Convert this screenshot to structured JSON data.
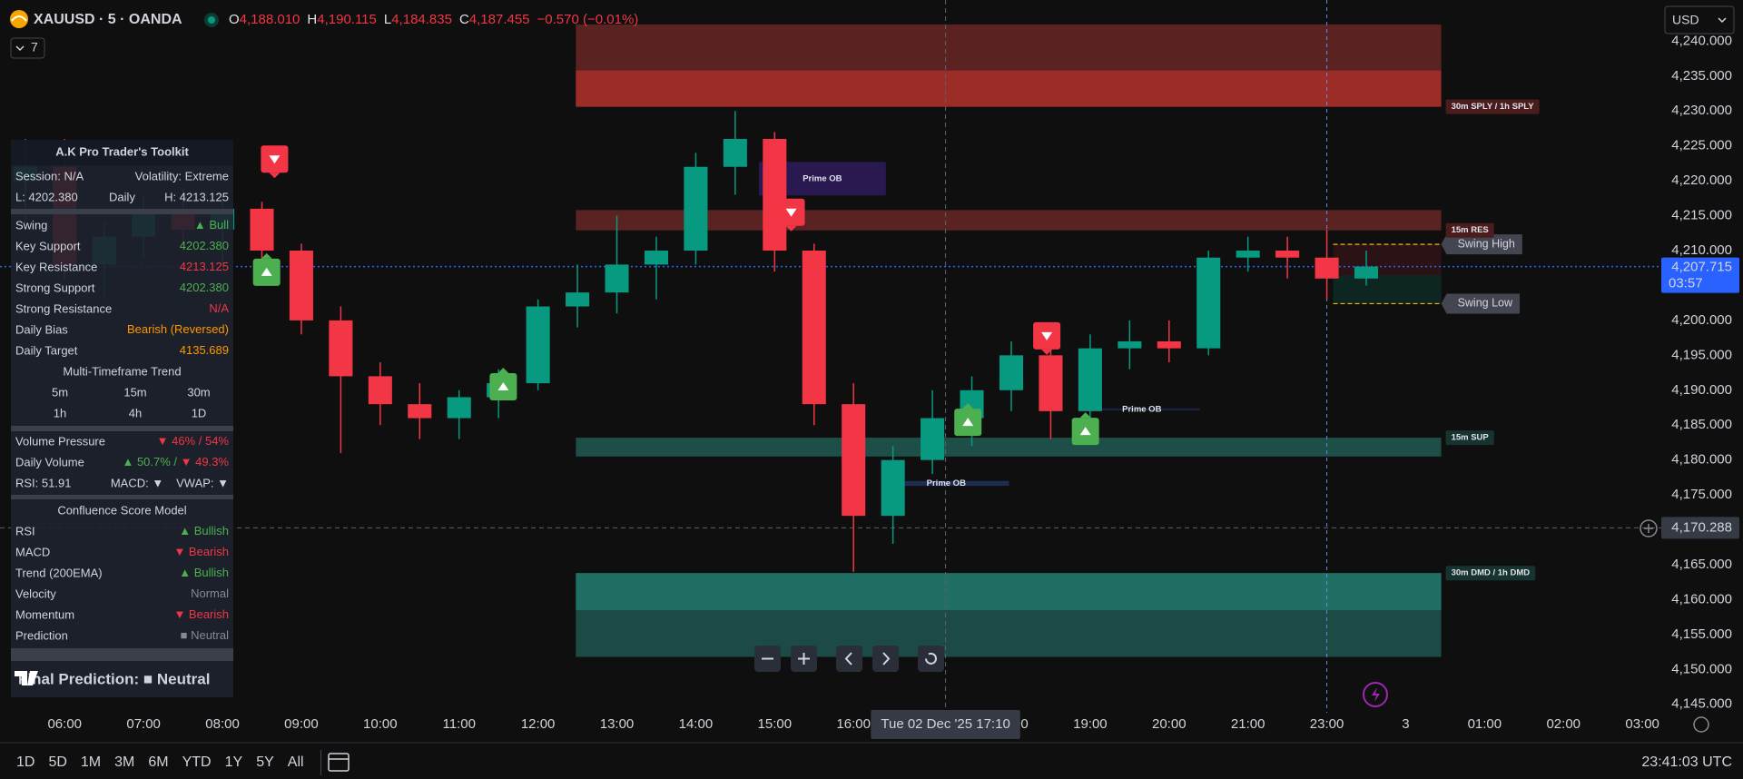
{
  "header": {
    "symbol": "XAUUSD · 5 · OANDA",
    "ohlc": [
      {
        "key": "O",
        "value": "4,188.010"
      },
      {
        "key": "H",
        "value": "4,190.115"
      },
      {
        "key": "L",
        "value": "4,184.835"
      },
      {
        "key": "C",
        "value": "4,187.455"
      }
    ],
    "change": "−0.570 (−0.01%)",
    "value_color": "#f23645",
    "indicators": "7",
    "currency": "USD"
  },
  "chart_data": {
    "type": "candlestick",
    "x": [
      5.5,
      6,
      6.5,
      7,
      7.5,
      8,
      8.5,
      9,
      9.5,
      10,
      10.5,
      11,
      11.5,
      12,
      12.5,
      13,
      13.5,
      14,
      14.5,
      15,
      15.5,
      16,
      16.5,
      17,
      17.5,
      18,
      18.5,
      19,
      19.5,
      20,
      20.5,
      21,
      21.5,
      23,
      23.5
    ],
    "open": [
      4220,
      4222,
      4208,
      4212,
      4216,
      4213,
      4216,
      4210,
      4200,
      4192,
      4188,
      4186,
      4189,
      4191,
      4202,
      4204,
      4208,
      4210,
      4222,
      4226,
      4210,
      4188,
      4172,
      4180,
      4186,
      4190,
      4195,
      4187,
      4196,
      4197,
      4196,
      4209,
      4210,
      4209,
      4206
    ],
    "high": [
      4226,
      4226,
      4214,
      4218,
      4219,
      4218,
      4217,
      4211,
      4202,
      4194,
      4191,
      4190,
      4193,
      4203,
      4208,
      4215,
      4212,
      4224,
      4230,
      4227,
      4211,
      4191,
      4182,
      4190,
      4192,
      4197,
      4198,
      4198,
      4200,
      4200,
      4210,
      4212,
      4212,
      4213,
      4210
    ],
    "low": [
      4214,
      4206,
      4203,
      4209,
      4210,
      4208,
      4208,
      4198,
      4181,
      4185,
      4183,
      4183,
      4186,
      4190,
      4199,
      4201,
      4203,
      4208,
      4218,
      4207,
      4185,
      4164,
      4168,
      4178,
      4182,
      4187,
      4183,
      4185,
      4193,
      4194,
      4195,
      4207,
      4206,
      4203,
      4205
    ],
    "close": [
      4222,
      4208,
      4212,
      4216,
      4213,
      4216,
      4210,
      4200,
      4192,
      4188,
      4186,
      4189,
      4191,
      4202,
      4204,
      4208,
      4210,
      4222,
      4226,
      4210,
      4188,
      4172,
      4180,
      4186,
      4190,
      4195,
      4187,
      4196,
      4197,
      4196,
      4209,
      4210,
      4209,
      4206,
      4207.715
    ],
    "up_color": "#089981",
    "down_color": "#f23645",
    "xlim": [
      5.18,
      27.24
    ],
    "breaks": [
      [
        22,
        23
      ]
    ],
    "xticks": [
      {
        "value": 6,
        "label": "06:00"
      },
      {
        "value": 7,
        "label": "07:00"
      },
      {
        "value": 8,
        "label": "08:00"
      },
      {
        "value": 9,
        "label": "09:00"
      },
      {
        "value": 10,
        "label": "10:00"
      },
      {
        "value": 11,
        "label": "11:00"
      },
      {
        "value": 12,
        "label": "12:00"
      },
      {
        "value": 13,
        "label": "13:00"
      },
      {
        "value": 14,
        "label": "14:00"
      },
      {
        "value": 15,
        "label": "15:00"
      },
      {
        "value": 16,
        "label": "16:00"
      },
      {
        "value": 18,
        "label": "18:00"
      },
      {
        "value": 19,
        "label": "19:00"
      },
      {
        "value": 20,
        "label": "20:00"
      },
      {
        "value": 21,
        "label": "21:00"
      },
      {
        "value": 23,
        "label": "23:00"
      },
      {
        "value": 24,
        "label": "3"
      },
      {
        "value": 25,
        "label": "01:00"
      },
      {
        "value": 26,
        "label": "02:00"
      },
      {
        "value": 27,
        "label": "03:00"
      }
    ],
    "ylim": [
      4143.8,
      4245.9
    ],
    "yticks": [
      {
        "value": 4145,
        "label": "4,145.000"
      },
      {
        "value": 4150,
        "label": "4,150.000"
      },
      {
        "value": 4155,
        "label": "4,155.000"
      },
      {
        "value": 4160,
        "label": "4,160.000"
      },
      {
        "value": 4165,
        "label": "4,165.000"
      },
      {
        "value": 4175,
        "label": "4,175.000"
      },
      {
        "value": 4180,
        "label": "4,180.000"
      },
      {
        "value": 4185,
        "label": "4,185.000"
      },
      {
        "value": 4190,
        "label": "4,190.000"
      },
      {
        "value": 4195,
        "label": "4,195.000"
      },
      {
        "value": 4200,
        "label": "4,200.000"
      },
      {
        "value": 4210,
        "label": "4,210.000"
      },
      {
        "value": 4215,
        "label": "4,215.000"
      },
      {
        "value": 4220,
        "label": "4,220.000"
      },
      {
        "value": 4225,
        "label": "4,225.000"
      },
      {
        "value": 4230,
        "label": "4,230.000"
      },
      {
        "value": 4235,
        "label": "4,235.000"
      },
      {
        "value": 4240,
        "label": "4,240.000"
      }
    ],
    "zones": [
      {
        "label": "30m SPLY / 1h SPLY",
        "label_at": "low",
        "label_color": "#4a1c1c",
        "start": 12.48,
        "end": 24.45,
        "low": 4230.6,
        "high": 4242.4,
        "color": "#5b2222"
      },
      {
        "start": 12.48,
        "end": 24.45,
        "low": 4230.6,
        "high": 4235.8,
        "color": "#9c2c27"
      },
      {
        "label": "15m RES",
        "label_at": "low",
        "label_color": "#4a1c1c",
        "start": 12.48,
        "end": 24.45,
        "low": 4212.9,
        "high": 4215.8,
        "color": "#5b2222"
      },
      {
        "label": "15m SUP",
        "label_at": "high",
        "label_color": "#16332f",
        "start": 12.48,
        "end": 24.45,
        "low": 4180.5,
        "high": 4183.2,
        "color": "#1e4e48"
      },
      {
        "label": "30m DMD / 1h DMD",
        "label_at": "high",
        "label_color": "#16332f",
        "start": 12.48,
        "end": 24.45,
        "low": 4151.8,
        "high": 4163.8,
        "color": "#1c4a44"
      },
      {
        "start": 12.48,
        "end": 24.45,
        "low": 4158.5,
        "high": 4163.8,
        "color": "#1f6f65"
      },
      {
        "start": 23.08,
        "end": 24.45,
        "low": 4206.5,
        "high": 4210.9,
        "color": "#2b1315"
      },
      {
        "start": 23.08,
        "end": 24.45,
        "low": 4202.4,
        "high": 4206.5,
        "color": "#0d2622"
      }
    ],
    "levels": [
      {
        "label": "Swing High",
        "value": 4210.9,
        "start": 23.08,
        "end": 24.45,
        "color": "#f0b90b"
      },
      {
        "label": "Swing Low",
        "value": 4202.4,
        "start": 23.08,
        "end": 24.45,
        "color": "#f0b90b"
      }
    ],
    "order_blocks": [
      {
        "label": "Prime OB",
        "start": 14.8,
        "end": 16.41,
        "low": 4217.9,
        "high": 4222.7,
        "color": "#2a1850"
      },
      {
        "label": "Prime OB",
        "start": 18.92,
        "end": 20.39,
        "low": 4187.1,
        "high": 4187.4,
        "color": "#1c2340"
      },
      {
        "label": "Prime OB",
        "start": 16.38,
        "end": 17.97,
        "low": 4176.3,
        "high": 4177.0,
        "color": "#1d2c52"
      }
    ],
    "signals": [
      {
        "x": 8.66,
        "y": 4223.1,
        "dir": "sell"
      },
      {
        "x": 15.21,
        "y": 4215.5,
        "dir": "sell"
      },
      {
        "x": 18.45,
        "y": 4197.8,
        "dir": "sell"
      },
      {
        "x": 8.56,
        "y": 4206.9,
        "dir": "buy"
      },
      {
        "x": 11.56,
        "y": 4190.5,
        "dir": "buy"
      },
      {
        "x": 17.45,
        "y": 4185.4,
        "dir": "buy"
      },
      {
        "x": 18.94,
        "y": 4184.1,
        "dir": "buy"
      }
    ],
    "buy_color": "#4caf50",
    "sell_color": "#f23645",
    "session_break": 23,
    "last_price": {
      "value": 4207.715,
      "label": "4,207.715",
      "countdown": "03:57",
      "color": "#2962ff"
    },
    "crosshair": {
      "x": 17.1667,
      "x_label": "Tue 02 Dec '25 17:10",
      "y": 4170.288,
      "y_label": "4,170.288"
    }
  },
  "panel": {
    "title": "A.K Pro Trader's Toolkit",
    "session": [
      {
        "text": "Session: N/A",
        "color": "#d1d4dc"
      },
      {
        "text": "Volatility: Extreme",
        "color": "#f23645"
      }
    ],
    "range": [
      {
        "text": "L: 4202.380",
        "color": "#d1d4dc"
      },
      {
        "text": "Daily",
        "color": "#d1d4dc"
      },
      {
        "text": "H: 4213.125",
        "color": "#d1d4dc"
      }
    ],
    "levels": [
      {
        "label": "Swing",
        "value": [
          {
            "text": "▲ Bull",
            "color": "#4caf50"
          }
        ]
      },
      {
        "label": "Key Support",
        "value": [
          {
            "text": "4202.380",
            "color": "#4caf50"
          }
        ]
      },
      {
        "label": "Key Resistance",
        "value": [
          {
            "text": "4213.125",
            "color": "#f23645"
          }
        ]
      },
      {
        "label": "Strong Support",
        "value": [
          {
            "text": "4202.380",
            "color": "#4caf50"
          }
        ]
      },
      {
        "label": "Strong Resistance",
        "value": [
          {
            "text": "N/A",
            "color": "#f23645"
          }
        ]
      },
      {
        "label": "Daily Bias",
        "value": [
          {
            "text": "Bearish (Reversed)",
            "color": "#ff9800"
          }
        ]
      },
      {
        "label": "Daily Target",
        "value": [
          {
            "text": "4135.689",
            "color": "#ff9800"
          }
        ]
      }
    ],
    "mtf": {
      "title": "Multi-Timeframe Trend",
      "frames": [
        {
          "text": "5m",
          "color": "#4caf50"
        },
        {
          "text": "15m",
          "color": "#f23645"
        },
        {
          "text": "30m",
          "color": "#4caf50"
        },
        {
          "text": "1h",
          "color": "#4caf50"
        },
        {
          "text": "4h",
          "color": "#4caf50"
        },
        {
          "text": "1D",
          "color": "#4caf50"
        }
      ]
    },
    "volume": [
      {
        "label": "Volume Pressure",
        "value": [
          {
            "text": "▼ 46% / 54%",
            "color": "#f23645"
          }
        ]
      },
      {
        "label": "Daily Volume",
        "value": [
          {
            "text": "▲ 50.7% / ",
            "color": "#4caf50"
          },
          {
            "text": "▼ 49.3%",
            "color": "#f23645"
          }
        ]
      }
    ],
    "indicators": [
      {
        "text": "RSI: 51.91",
        "color": "#4caf50"
      },
      {
        "text": "MACD: ▼",
        "color": "#f23645"
      },
      {
        "text": "VWAP: ▼",
        "color": "#f23645"
      }
    ],
    "confluence": {
      "title": "Confluence Score Model",
      "rows": [
        {
          "label": "RSI",
          "value": [
            {
              "text": "▲ Bullish",
              "color": "#4caf50"
            }
          ]
        },
        {
          "label": "MACD",
          "value": [
            {
              "text": "▼ Bearish",
              "color": "#f23645"
            }
          ]
        },
        {
          "label": "Trend (200EMA)",
          "value": [
            {
              "text": "▲ Bullish",
              "color": "#4caf50"
            }
          ]
        },
        {
          "label": "Velocity",
          "value": [
            {
              "text": "Normal",
              "color": "#868993"
            }
          ]
        },
        {
          "label": "Momentum",
          "value": [
            {
              "text": "▼ Bearish",
              "color": "#f23645"
            }
          ]
        },
        {
          "label": "Prediction",
          "value": [
            {
              "text": "■ Neutral",
              "color": "#868993"
            }
          ]
        }
      ]
    },
    "final": "Final Prediction: ■ Neutral"
  },
  "toolbar": {
    "ranges": [
      "1D",
      "5D",
      "1M",
      "3M",
      "6M",
      "YTD",
      "1Y",
      "5Y",
      "All"
    ],
    "clock": "23:41:03 UTC"
  }
}
